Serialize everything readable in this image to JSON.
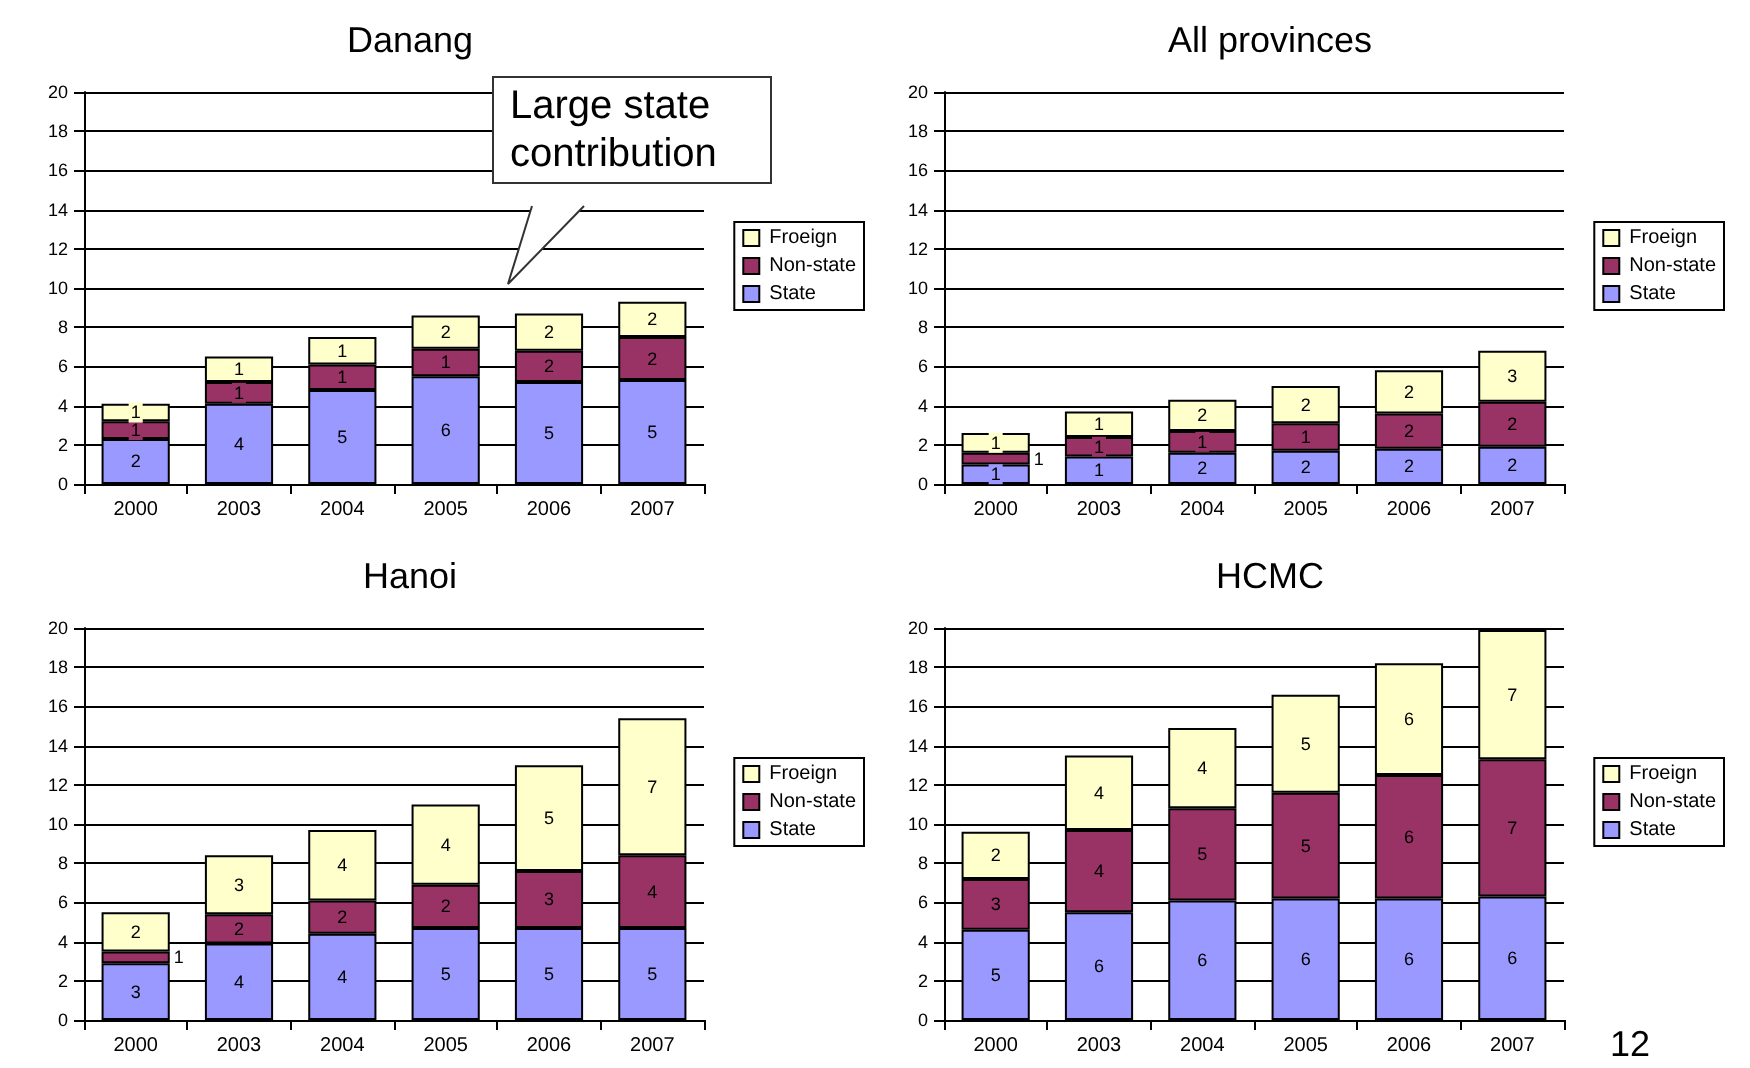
{
  "chart_data": [
    {
      "type": "bar",
      "title": "Danang",
      "stacked": true,
      "categories": [
        "2000",
        "2003",
        "2004",
        "2005",
        "2006",
        "2007"
      ],
      "ylim": [
        0,
        20
      ],
      "yticks": [
        0,
        2,
        4,
        6,
        8,
        10,
        12,
        14,
        16,
        18,
        20
      ],
      "grid": "y",
      "legend": "right",
      "annotations": [
        "Large state contribution"
      ],
      "series": [
        {
          "name": "State",
          "color": "#9999ff",
          "values": [
            2.3,
            4.1,
            4.8,
            5.5,
            5.2,
            5.3
          ],
          "value_labels": [
            "2",
            "4",
            "5",
            "6",
            "5",
            "5"
          ]
        },
        {
          "name": "Non-state",
          "color": "#993366",
          "values": [
            0.9,
            1.1,
            1.3,
            1.4,
            1.6,
            2.2
          ],
          "value_labels": [
            "1",
            "1",
            "1",
            "1",
            "2",
            "2"
          ]
        },
        {
          "name": "Froeign",
          "color": "#ffffcc",
          "values": [
            0.9,
            1.3,
            1.4,
            1.7,
            1.9,
            1.8
          ],
          "value_labels": [
            "1",
            "1",
            "1",
            "2",
            "2",
            "2"
          ]
        }
      ]
    },
    {
      "type": "bar",
      "title": "All provinces",
      "stacked": true,
      "categories": [
        "2000",
        "2003",
        "2004",
        "2005",
        "2006",
        "2007"
      ],
      "ylim": [
        0,
        20
      ],
      "yticks": [
        0,
        2,
        4,
        6,
        8,
        10,
        12,
        14,
        16,
        18,
        20
      ],
      "grid": "y",
      "legend": "right",
      "series": [
        {
          "name": "State",
          "color": "#9999ff",
          "values": [
            1.0,
            1.4,
            1.6,
            1.7,
            1.8,
            1.9
          ],
          "value_labels": [
            "1",
            "1",
            "2",
            "2",
            "2",
            "2"
          ]
        },
        {
          "name": "Non-state",
          "color": "#993366",
          "values": [
            0.6,
            1.0,
            1.1,
            1.4,
            1.8,
            2.3
          ],
          "value_labels": [
            "1",
            "1",
            "1",
            "1",
            "2",
            "2"
          ]
        },
        {
          "name": "Froeign",
          "color": "#ffffcc",
          "values": [
            1.0,
            1.3,
            1.6,
            1.9,
            2.2,
            2.6
          ],
          "value_labels": [
            "1",
            "1",
            "2",
            "2",
            "2",
            "3"
          ]
        }
      ]
    },
    {
      "type": "bar",
      "title": "Hanoi",
      "stacked": true,
      "categories": [
        "2000",
        "2003",
        "2004",
        "2005",
        "2006",
        "2007"
      ],
      "ylim": [
        0,
        20
      ],
      "yticks": [
        0,
        2,
        4,
        6,
        8,
        10,
        12,
        14,
        16,
        18,
        20
      ],
      "grid": "y",
      "legend": "right",
      "series": [
        {
          "name": "State",
          "color": "#9999ff",
          "values": [
            2.9,
            3.9,
            4.4,
            4.7,
            4.7,
            4.7
          ],
          "value_labels": [
            "3",
            "4",
            "4",
            "5",
            "5",
            "5"
          ]
        },
        {
          "name": "Non-state",
          "color": "#993366",
          "values": [
            0.6,
            1.5,
            1.7,
            2.2,
            2.9,
            3.7
          ],
          "value_labels": [
            "1",
            "2",
            "2",
            "2",
            "3",
            "4"
          ]
        },
        {
          "name": "Froeign",
          "color": "#ffffcc",
          "values": [
            2.0,
            3.0,
            3.6,
            4.1,
            5.4,
            7.0
          ],
          "value_labels": [
            "2",
            "3",
            "4",
            "4",
            "5",
            "7"
          ]
        }
      ]
    },
    {
      "type": "bar",
      "title": "HCMC",
      "stacked": true,
      "categories": [
        "2000",
        "2003",
        "2004",
        "2005",
        "2006",
        "2007"
      ],
      "ylim": [
        0,
        20
      ],
      "yticks": [
        0,
        2,
        4,
        6,
        8,
        10,
        12,
        14,
        16,
        18,
        20
      ],
      "grid": "y",
      "legend": "right",
      "annotations": [
        "12"
      ],
      "series": [
        {
          "name": "State",
          "color": "#9999ff",
          "values": [
            4.6,
            5.5,
            6.1,
            6.2,
            6.2,
            6.3
          ],
          "value_labels": [
            "5",
            "6",
            "6",
            "6",
            "6",
            "6"
          ]
        },
        {
          "name": "Non-state",
          "color": "#993366",
          "values": [
            2.6,
            4.2,
            4.7,
            5.4,
            6.3,
            7.0
          ],
          "value_labels": [
            "3",
            "4",
            "5",
            "5",
            "6",
            "7"
          ]
        },
        {
          "name": "Froeign",
          "color": "#ffffcc",
          "values": [
            2.4,
            3.8,
            4.1,
            5.0,
            5.7,
            6.6
          ],
          "value_labels": [
            "2",
            "4",
            "4",
            "5",
            "6",
            "7"
          ]
        }
      ]
    }
  ]
}
